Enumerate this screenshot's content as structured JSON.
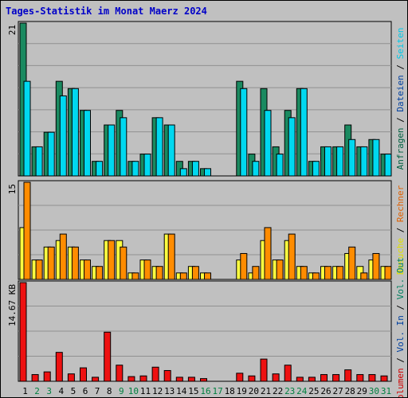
{
  "chart_data": {
    "type": "bar",
    "title": "Tages-Statistik im Monat Maerz 2024",
    "categories": [
      "1",
      "2",
      "3",
      "4",
      "5",
      "6",
      "7",
      "8",
      "9",
      "10",
      "11",
      "12",
      "13",
      "14",
      "15",
      "16",
      "17",
      "18",
      "19",
      "20",
      "21",
      "22",
      "23",
      "24",
      "25",
      "26",
      "27",
      "28",
      "29",
      "30",
      "31"
    ],
    "weekend_days": [
      "2",
      "3",
      "9",
      "10",
      "16",
      "17",
      "23",
      "24",
      "30",
      "31"
    ],
    "grid": true,
    "panels": [
      {
        "max_label": "21",
        "ylim": [
          0,
          21
        ],
        "label_parts": [
          {
            "text": "Anfragen",
            "color": "#006040"
          },
          {
            "text": "Dateien",
            "color": "#0040a0"
          },
          {
            "text": "Seiten",
            "color": "#00c8e8"
          }
        ],
        "series": [
          {
            "name": "Anfragen",
            "color": "#1a8a60",
            "values": [
              21,
              4,
              6,
              13,
              12,
              9,
              2,
              7,
              9,
              2,
              3,
              8,
              7,
              2,
              2,
              1,
              0,
              0,
              13,
              3,
              12,
              4,
              9,
              12,
              2,
              4,
              4,
              7,
              4,
              5,
              3
            ]
          },
          {
            "name": "Dateien",
            "color": "#00d8f0",
            "values": [
              13,
              4,
              6,
              11,
              12,
              9,
              2,
              7,
              8,
              2,
              3,
              8,
              7,
              1,
              2,
              1,
              0,
              0,
              12,
              2,
              9,
              3,
              8,
              12,
              2,
              4,
              4,
              5,
              4,
              5,
              3
            ]
          }
        ]
      },
      {
        "max_label": "15",
        "ylim": [
          0,
          15
        ],
        "label_parts": [
          {
            "text": "Besuche",
            "color": "#e0e000"
          },
          {
            "text": "Rechner",
            "color": "#e06000"
          }
        ],
        "series": [
          {
            "name": "Besuche",
            "color": "#ffff40",
            "values": [
              8,
              3,
              5,
              6,
              5,
              3,
              2,
              6,
              6,
              1,
              3,
              2,
              7,
              1,
              2,
              1,
              0,
              0,
              3,
              1,
              6,
              3,
              6,
              2,
              1,
              2,
              2,
              4,
              2,
              3,
              2
            ]
          },
          {
            "name": "Rechner",
            "color": "#ff8c00",
            "values": [
              15,
              3,
              5,
              7,
              5,
              3,
              2,
              6,
              5,
              1,
              3,
              2,
              7,
              1,
              2,
              1,
              0,
              0,
              4,
              2,
              8,
              3,
              7,
              2,
              1,
              2,
              2,
              5,
              1,
              4,
              2
            ]
          }
        ]
      },
      {
        "max_label": "14.67 KB",
        "ylim": [
          0,
          14.67
        ],
        "label_parts": [
          {
            "text": "Volumen",
            "color": "#d00000"
          },
          {
            "text": "Vol. In",
            "color": "#0040a0"
          },
          {
            "text": "Vol. Out",
            "color": "#008060"
          }
        ],
        "series": [
          {
            "name": "Volumen",
            "color": "#ee1111",
            "values": [
              14.67,
              1.0,
              1.4,
              4.3,
              1.1,
              2.0,
              0.6,
              7.3,
              2.4,
              0.7,
              0.8,
              2.1,
              1.6,
              0.6,
              0.6,
              0.4,
              0,
              0,
              1.2,
              0.8,
              3.3,
              1.1,
              2.4,
              0.6,
              0.6,
              1.0,
              1.0,
              1.7,
              1.0,
              1.0,
              0.8
            ]
          }
        ]
      }
    ]
  }
}
